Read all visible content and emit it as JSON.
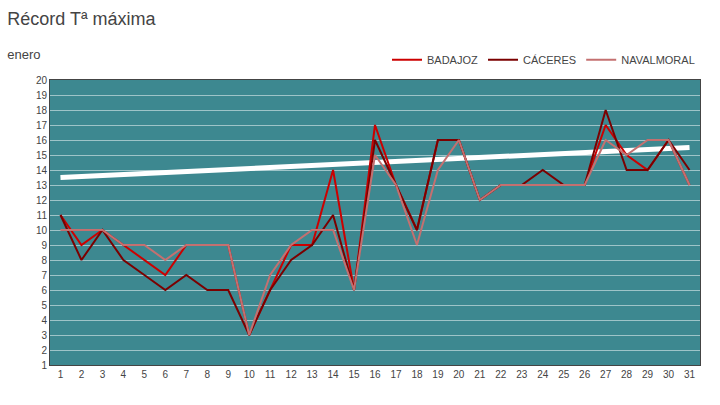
{
  "chart_data": {
    "type": "line",
    "title": "Récord Tª máxima",
    "subtitle": "enero",
    "x": [
      1,
      2,
      3,
      4,
      5,
      6,
      7,
      8,
      9,
      10,
      11,
      12,
      13,
      14,
      15,
      16,
      17,
      18,
      19,
      20,
      21,
      22,
      23,
      24,
      25,
      26,
      27,
      28,
      29,
      30,
      31
    ],
    "series": [
      {
        "color": "#ffffff",
        "x": [
          1,
          31
        ],
        "values": [
          13.5,
          15.5
        ]
      },
      {
        "name": "BADAJOZ",
        "color": "#cc0000",
        "values": [
          11,
          9,
          10,
          9,
          8,
          7,
          9,
          9,
          9,
          3,
          6,
          9,
          9,
          14,
          6,
          17,
          13,
          10,
          16,
          16,
          12,
          13,
          13,
          13,
          13,
          13,
          17,
          15,
          14,
          16,
          13
        ]
      },
      {
        "name": "CÁCERES",
        "color": "#7b0000",
        "values": [
          11,
          8,
          10,
          8,
          7,
          6,
          7,
          6,
          6,
          3,
          6,
          8,
          9,
          11,
          6,
          16,
          13,
          10,
          16,
          16,
          12,
          13,
          13,
          14,
          13,
          13,
          18,
          14,
          14,
          16,
          14
        ]
      },
      {
        "name": "NAVALMORAL",
        "color": "#c47070",
        "values": [
          10,
          10,
          10,
          9,
          9,
          8,
          9,
          9,
          9,
          3,
          7,
          9,
          10,
          10,
          6,
          15,
          13,
          9,
          14,
          16,
          12,
          13,
          13,
          13,
          13,
          13,
          16,
          15,
          16,
          16,
          13
        ]
      }
    ],
    "xlim": [
      0.5,
      31.5
    ],
    "xticks": [
      1,
      2,
      3,
      4,
      5,
      6,
      7,
      8,
      9,
      10,
      11,
      12,
      13,
      14,
      15,
      16,
      17,
      18,
      19,
      20,
      21,
      22,
      23,
      24,
      25,
      26,
      27,
      28,
      29,
      30,
      31
    ],
    "ylim": [
      1,
      20
    ],
    "yticks": [
      1,
      2,
      3,
      4,
      5,
      6,
      7,
      8,
      9,
      10,
      11,
      12,
      13,
      14,
      15,
      16,
      17,
      18,
      19,
      20
    ],
    "grid": "y",
    "legend": "upper right"
  }
}
